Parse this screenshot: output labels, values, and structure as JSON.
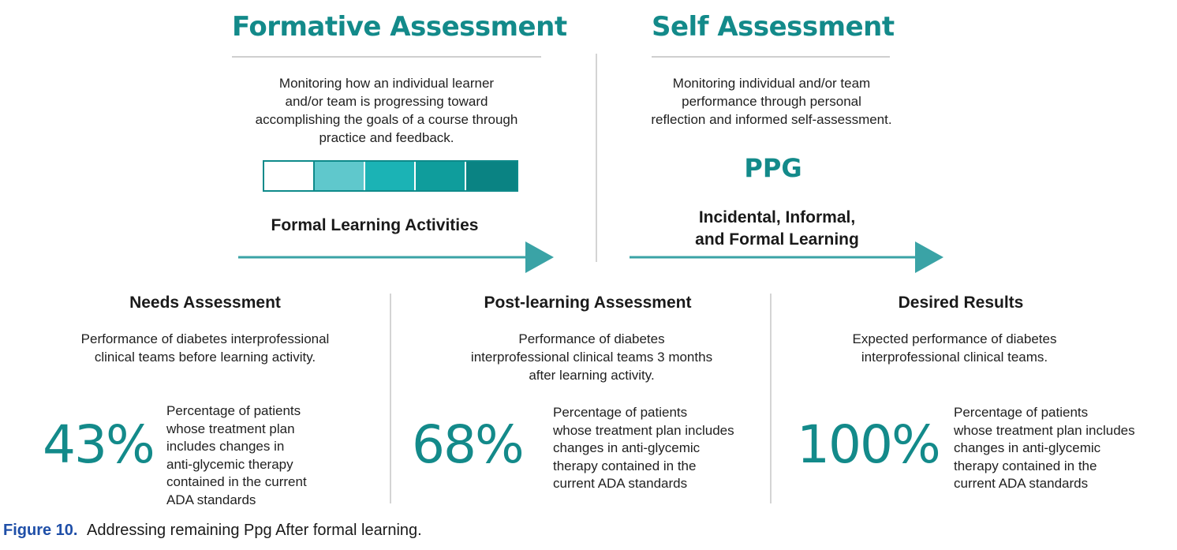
{
  "formative": {
    "title": "Formative Assessment",
    "desc_lines": [
      "Monitoring how an individual learner",
      "and/or team is progressing toward",
      "accomplishing the goals of a course through",
      "practice and feedback."
    ],
    "scale_colors": [
      "#ffffff",
      "#5fc8cc",
      "#1bb3b5",
      "#0f9d9c",
      "#0a8383"
    ],
    "activity_label": "Formal Learning Activities"
  },
  "self": {
    "title": "Self Assessment",
    "desc_lines": [
      "Monitoring individual and/or team",
      "performance through personal",
      "reflection and informed self-assessment."
    ],
    "ppg": "PPG",
    "learning_lines": [
      "Incidental, Informal,",
      "and Formal Learning"
    ]
  },
  "columns": [
    {
      "title": "Needs Assessment",
      "desc_lines": [
        "Performance of diabetes interprofessional",
        "clinical teams before learning activity."
      ],
      "percent": "43%",
      "percent_desc_lines": [
        "Percentage of patients",
        "whose treatment plan",
        "includes changes in",
        "anti-glycemic therapy",
        "contained in the current",
        "ADA standards"
      ]
    },
    {
      "title": "Post-learning Assessment",
      "desc_lines": [
        "Performance of diabetes",
        "interprofessional clinical teams 3 months",
        "after learning activity."
      ],
      "percent": "68%",
      "percent_desc_lines": [
        "Percentage of patients",
        "whose treatment plan includes",
        "changes in anti-glycemic",
        "therapy contained in the",
        "current ADA standards"
      ]
    },
    {
      "title": "Desired Results",
      "desc_lines": [
        "Expected performance of diabetes",
        "interprofessional clinical teams."
      ],
      "percent": "100%",
      "percent_desc_lines": [
        "Percentage of patients",
        "whose treatment plan includes",
        "changes in anti-glycemic",
        "therapy contained in the",
        "current ADA standards"
      ]
    }
  ],
  "caption": {
    "figure_label": "Figure 10.",
    "text": "Addressing remaining Ppg After formal learning."
  },
  "colors": {
    "teal": "#138a8a",
    "arrow": "#3aa3a6"
  }
}
